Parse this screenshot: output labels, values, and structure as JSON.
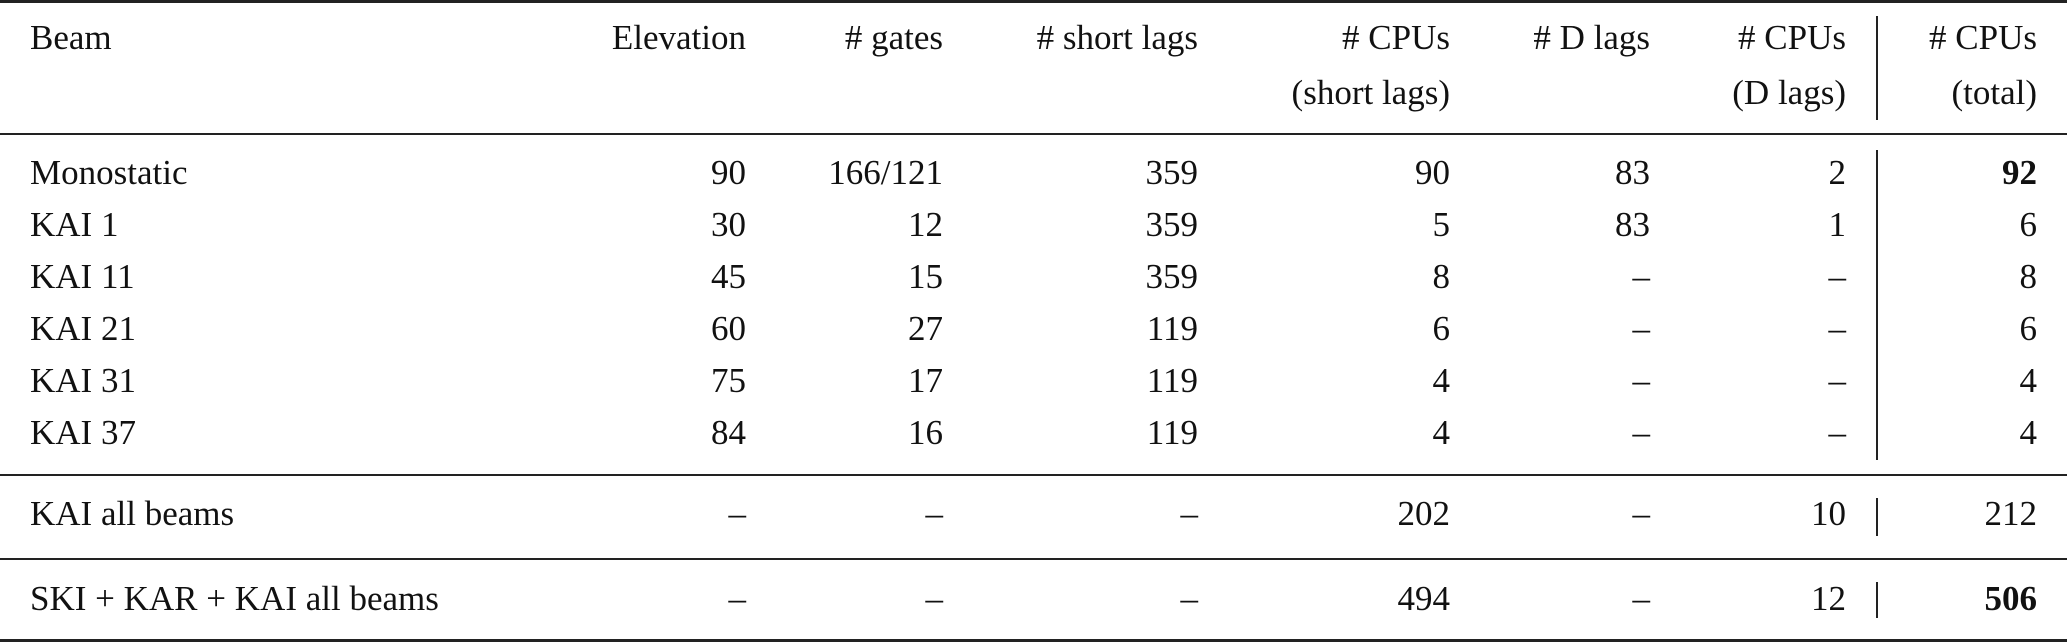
{
  "table": {
    "header_line1": [
      "Beam",
      "Elevation",
      "# gates",
      "# short lags",
      "# CPUs",
      "# D lags",
      "# CPUs",
      "# CPUs"
    ],
    "header_line2": [
      "",
      "",
      "",
      "",
      "(short lags)",
      "",
      "(D lags)",
      "(total)"
    ],
    "rows": [
      {
        "cells": [
          "Monostatic",
          "90",
          "166/121",
          "359",
          "90",
          "83",
          "2",
          "92"
        ],
        "total_bold": true
      },
      {
        "cells": [
          "KAI 1",
          "30",
          "12",
          "359",
          "5",
          "83",
          "1",
          "6"
        ],
        "total_bold": false
      },
      {
        "cells": [
          "KAI 11",
          "45",
          "15",
          "359",
          "8",
          "–",
          "–",
          "8"
        ],
        "total_bold": false
      },
      {
        "cells": [
          "KAI 21",
          "60",
          "27",
          "119",
          "6",
          "–",
          "–",
          "6"
        ],
        "total_bold": false
      },
      {
        "cells": [
          "KAI 31",
          "75",
          "17",
          "119",
          "4",
          "–",
          "–",
          "4"
        ],
        "total_bold": false
      },
      {
        "cells": [
          "KAI 37",
          "84",
          "16",
          "119",
          "4",
          "–",
          "–",
          "4"
        ],
        "total_bold": false
      },
      {
        "cells": [
          "KAI all beams",
          "–",
          "–",
          "–",
          "202",
          "–",
          "10",
          "212"
        ],
        "total_bold": false
      },
      {
        "cells": [
          "SKI + KAR + KAI all beams",
          "–",
          "–",
          "–",
          "494",
          "–",
          "12",
          "506"
        ],
        "total_bold": true
      }
    ]
  }
}
